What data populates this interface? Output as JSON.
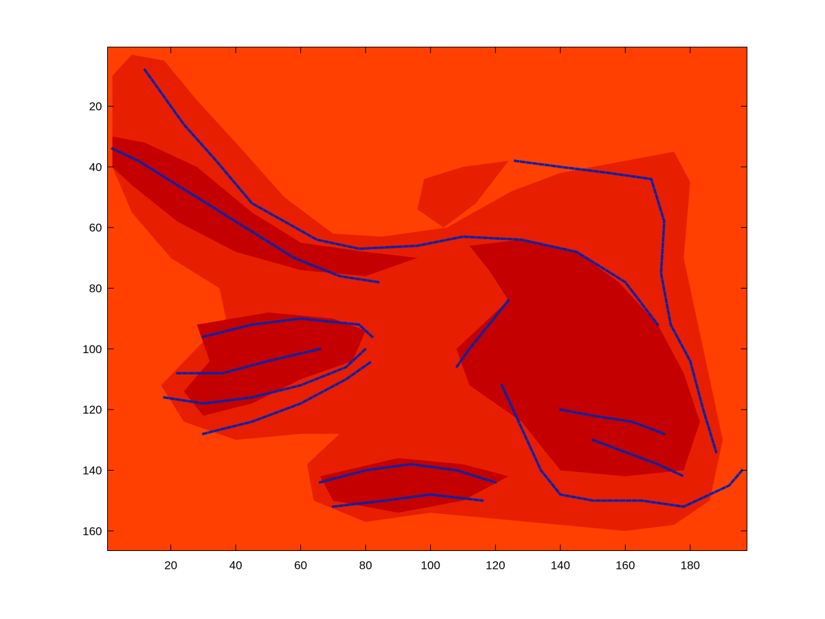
{
  "chart_data": {
    "type": "heatmap",
    "title": "",
    "xlabel": "",
    "ylabel": "",
    "image_size": {
      "columns": 197,
      "rows": 166
    },
    "xlim": [
      0.5,
      197.5
    ],
    "ylim": [
      0.5,
      166.5
    ],
    "y_axis_direction": "reversed",
    "x_ticks": [
      20,
      40,
      60,
      80,
      100,
      120,
      140,
      160,
      180
    ],
    "y_ticks": [
      20,
      40,
      60,
      80,
      100,
      120,
      140,
      160
    ],
    "grid": false,
    "legend": "none",
    "colormap_levels": [
      {
        "level": 1,
        "color": "#0a22a8"
      },
      {
        "level": 2,
        "color": "#c40000"
      },
      {
        "level": 3,
        "color": "#e81e00"
      },
      {
        "level": 4,
        "color": "#ff4000"
      }
    ],
    "background_level": 4,
    "regions": [
      {
        "level": 3,
        "points": [
          [
            2,
            10
          ],
          [
            8,
            3
          ],
          [
            18,
            5
          ],
          [
            28,
            18
          ],
          [
            40,
            32
          ],
          [
            55,
            50
          ],
          [
            70,
            62
          ],
          [
            85,
            63
          ],
          [
            105,
            60
          ],
          [
            125,
            48
          ],
          [
            140,
            42
          ],
          [
            160,
            38
          ],
          [
            175,
            35
          ],
          [
            180,
            45
          ],
          [
            178,
            70
          ],
          [
            182,
            90
          ],
          [
            186,
            110
          ],
          [
            190,
            130
          ],
          [
            186,
            150
          ],
          [
            175,
            158
          ],
          [
            160,
            160
          ],
          [
            140,
            158
          ],
          [
            120,
            156
          ],
          [
            100,
            154
          ],
          [
            80,
            157
          ],
          [
            64,
            150
          ],
          [
            62,
            138
          ],
          [
            72,
            128
          ],
          [
            60,
            128
          ],
          [
            40,
            130
          ],
          [
            24,
            124
          ],
          [
            17,
            112
          ],
          [
            26,
            102
          ],
          [
            37,
            90
          ],
          [
            35,
            80
          ],
          [
            20,
            70
          ],
          [
            8,
            55
          ],
          [
            2,
            40
          ]
        ]
      },
      {
        "level": 2,
        "points": [
          [
            112,
            66
          ],
          [
            128,
            64
          ],
          [
            145,
            68
          ],
          [
            158,
            78
          ],
          [
            170,
            92
          ],
          [
            178,
            108
          ],
          [
            183,
            124
          ],
          [
            178,
            140
          ],
          [
            160,
            142
          ],
          [
            140,
            140
          ],
          [
            128,
            124
          ],
          [
            112,
            112
          ],
          [
            108,
            100
          ],
          [
            116,
            92
          ],
          [
            124,
            84
          ],
          [
            118,
            74
          ]
        ]
      },
      {
        "level": 2,
        "points": [
          [
            2,
            30
          ],
          [
            12,
            32
          ],
          [
            28,
            40
          ],
          [
            45,
            55
          ],
          [
            60,
            65
          ],
          [
            80,
            68
          ],
          [
            96,
            70
          ],
          [
            80,
            76
          ],
          [
            60,
            74
          ],
          [
            40,
            68
          ],
          [
            22,
            58
          ],
          [
            8,
            46
          ],
          [
            2,
            40
          ]
        ]
      },
      {
        "level": 2,
        "points": [
          [
            28,
            92
          ],
          [
            50,
            88
          ],
          [
            70,
            90
          ],
          [
            80,
            94
          ],
          [
            76,
            104
          ],
          [
            60,
            110
          ],
          [
            45,
            118
          ],
          [
            30,
            122
          ],
          [
            24,
            114
          ],
          [
            32,
            104
          ]
        ]
      },
      {
        "level": 2,
        "points": [
          [
            66,
            142
          ],
          [
            90,
            136
          ],
          [
            110,
            138
          ],
          [
            124,
            142
          ],
          [
            110,
            150
          ],
          [
            90,
            154
          ],
          [
            70,
            150
          ]
        ]
      },
      {
        "level": 3,
        "points": [
          [
            98,
            44
          ],
          [
            110,
            40
          ],
          [
            124,
            38
          ],
          [
            114,
            52
          ],
          [
            104,
            60
          ],
          [
            96,
            54
          ]
        ]
      }
    ],
    "edge_curves": [
      {
        "level": 1,
        "points": [
          [
            12,
            8
          ],
          [
            16,
            14
          ],
          [
            24,
            26
          ],
          [
            34,
            38
          ],
          [
            45,
            52
          ],
          [
            55,
            58
          ],
          [
            65,
            64
          ],
          [
            78,
            67
          ],
          [
            96,
            66
          ],
          [
            110,
            63
          ],
          [
            128,
            64
          ],
          [
            145,
            68
          ],
          [
            160,
            78
          ],
          [
            170,
            92
          ]
        ]
      },
      {
        "level": 1,
        "points": [
          [
            2,
            34
          ],
          [
            10,
            38
          ],
          [
            22,
            46
          ],
          [
            34,
            54
          ],
          [
            46,
            62
          ],
          [
            58,
            70
          ],
          [
            72,
            76
          ],
          [
            84,
            78
          ]
        ]
      },
      {
        "level": 1,
        "points": [
          [
            126,
            38
          ],
          [
            140,
            40
          ],
          [
            155,
            42
          ],
          [
            168,
            44
          ],
          [
            172,
            58
          ],
          [
            171,
            75
          ],
          [
            174,
            92
          ],
          [
            180,
            104
          ],
          [
            184,
            120
          ],
          [
            188,
            134
          ]
        ]
      },
      {
        "level": 1,
        "points": [
          [
            124,
            84
          ],
          [
            118,
            92
          ],
          [
            112,
            100
          ],
          [
            108,
            106
          ]
        ]
      },
      {
        "level": 1,
        "points": [
          [
            122,
            112
          ],
          [
            128,
            126
          ],
          [
            134,
            140
          ],
          [
            140,
            148
          ],
          [
            150,
            150
          ],
          [
            165,
            150
          ],
          [
            178,
            152
          ],
          [
            192,
            145
          ],
          [
            196,
            140
          ]
        ]
      },
      {
        "level": 1,
        "points": [
          [
            30,
            96
          ],
          [
            45,
            92
          ],
          [
            60,
            90
          ],
          [
            78,
            92
          ],
          [
            82,
            96
          ]
        ]
      },
      {
        "level": 1,
        "points": [
          [
            18,
            116
          ],
          [
            30,
            118
          ],
          [
            45,
            116
          ],
          [
            60,
            112
          ],
          [
            74,
            106
          ],
          [
            80,
            100
          ]
        ]
      },
      {
        "level": 1,
        "points": [
          [
            22,
            108
          ],
          [
            36,
            108
          ],
          [
            50,
            104
          ],
          [
            66,
            100
          ]
        ]
      },
      {
        "level": 1,
        "points": [
          [
            30,
            128
          ],
          [
            45,
            124
          ],
          [
            60,
            118
          ],
          [
            74,
            110
          ],
          [
            82,
            104
          ]
        ]
      },
      {
        "level": 1,
        "points": [
          [
            66,
            144
          ],
          [
            80,
            140
          ],
          [
            94,
            138
          ],
          [
            108,
            140
          ],
          [
            120,
            144
          ]
        ]
      },
      {
        "level": 1,
        "points": [
          [
            70,
            152
          ],
          [
            86,
            150
          ],
          [
            100,
            148
          ],
          [
            116,
            150
          ]
        ]
      },
      {
        "level": 1,
        "points": [
          [
            150,
            130
          ],
          [
            160,
            134
          ],
          [
            170,
            138
          ],
          [
            178,
            142
          ]
        ]
      },
      {
        "level": 1,
        "points": [
          [
            140,
            120
          ],
          [
            150,
            122
          ],
          [
            162,
            124
          ],
          [
            172,
            128
          ]
        ]
      }
    ]
  }
}
